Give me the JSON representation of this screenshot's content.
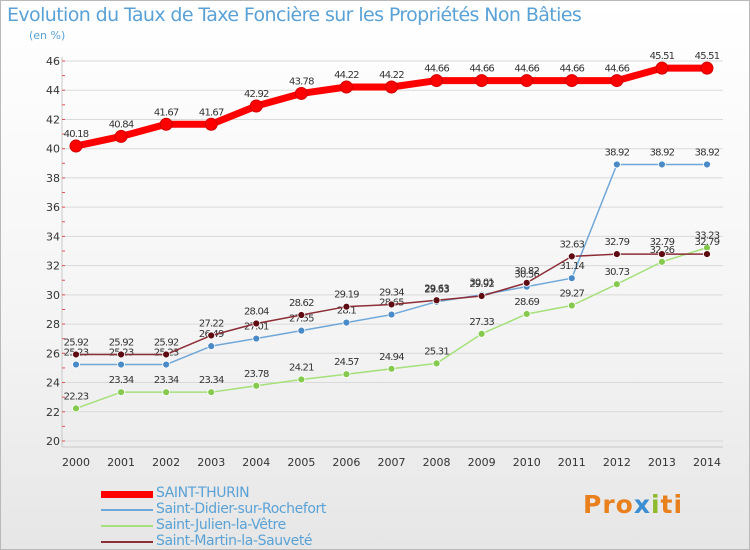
{
  "header": {
    "title": "Evolution du Taux de Taxe Foncière sur les Propriétés Non Bâties",
    "subtitle": "(en %)"
  },
  "logo": {
    "p1": "Pro",
    "x": "x",
    "i": "i",
    "ti": "ti"
  },
  "colors": {
    "title": "#5aa2d6",
    "grid": "#d9d9d9",
    "axis_label": "#333333"
  },
  "chart_data": {
    "type": "line",
    "title": "Evolution du Taux de Taxe Foncière sur les Propriétés Non Bâties",
    "subtitle": "(en %)",
    "x": [
      2000,
      2001,
      2002,
      2003,
      2004,
      2005,
      2006,
      2007,
      2008,
      2009,
      2010,
      2011,
      2012,
      2013,
      2014
    ],
    "ylim": [
      20,
      46
    ],
    "yticks": [
      20,
      22,
      24,
      26,
      28,
      30,
      32,
      34,
      36,
      38,
      40,
      42,
      44,
      46
    ],
    "grid": true,
    "legend": "bottom-left",
    "series": [
      {
        "name": "SAINT-THURIN",
        "color": "#ff0000",
        "marker_color": "#ff0000",
        "width": 7,
        "values": [
          40.18,
          40.84,
          41.67,
          41.67,
          42.92,
          43.78,
          44.22,
          44.22,
          44.66,
          44.66,
          44.66,
          44.66,
          44.66,
          45.51,
          45.51
        ],
        "labels": [
          "40.18",
          "40.84",
          "41.67",
          "41.67",
          "42.92",
          "43.78",
          "44.22",
          "44.22",
          "44.66",
          "44.66",
          "44.66",
          "44.66",
          "44.66",
          "45.51",
          "45.51"
        ]
      },
      {
        "name": "Saint-Didier-sur-Rochefort",
        "color": "#6fa8d8",
        "marker_color": "#4a8ac6",
        "width": 1.5,
        "values": [
          25.23,
          25.23,
          25.23,
          26.49,
          27.01,
          27.55,
          28.1,
          28.65,
          29.53,
          30.01,
          30.56,
          31.14,
          38.92,
          38.92,
          38.92
        ],
        "labels": [
          "25.23",
          "25.23",
          "25.23",
          "26.49",
          "27.01",
          "27.55",
          "28.1",
          "28.65",
          "29.53",
          "30.01",
          "30.56",
          "31.14",
          "38.92",
          "38.92",
          "38.92"
        ]
      },
      {
        "name": "Saint-Julien-la-Vêtre",
        "color": "#a5e07a",
        "marker_color": "#86c94f",
        "width": 1.5,
        "values": [
          22.23,
          23.34,
          23.34,
          23.34,
          23.78,
          24.21,
          24.57,
          24.94,
          25.31,
          27.33,
          28.69,
          29.27,
          30.73,
          32.26,
          33.23
        ],
        "labels": [
          "22.23",
          "23.34",
          "23.34",
          "23.34",
          "23.78",
          "24.21",
          "24.57",
          "24.94",
          "25.31",
          "27.33",
          "28.69",
          "29.27",
          "30.73",
          "32.26",
          "33.23"
        ]
      },
      {
        "name": "Saint-Martin-la-Sauveté",
        "color": "#8b2e36",
        "marker_color": "#5e0b12",
        "width": 1.5,
        "values": [
          25.92,
          25.92,
          25.92,
          27.22,
          28.04,
          28.62,
          29.19,
          29.34,
          29.63,
          29.92,
          30.82,
          32.63,
          32.79,
          32.79,
          32.79
        ],
        "labels": [
          "25.92",
          "25.92",
          "25.92",
          "27.22",
          "28.04",
          "28.62",
          "29.19",
          "29.34",
          "29.63",
          "29.92",
          "30.82",
          "32.63",
          "32.79",
          "32.79",
          "32.79"
        ]
      }
    ]
  }
}
